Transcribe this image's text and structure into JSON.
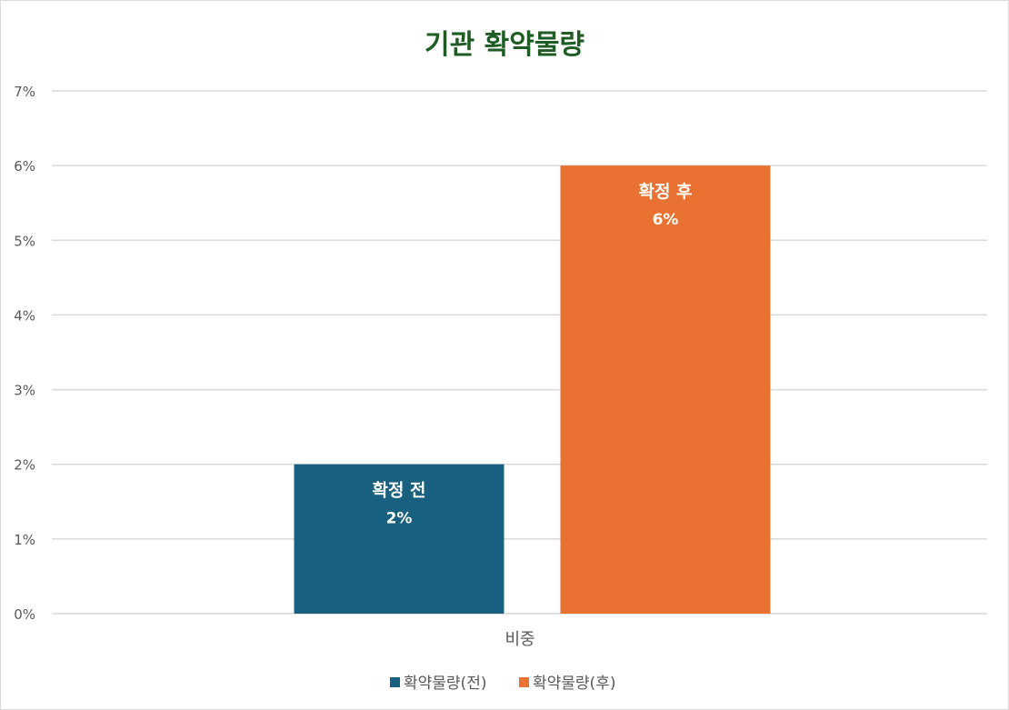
{
  "chart_data": {
    "type": "bar",
    "title": "기관 확약물량",
    "categories": [
      "비중"
    ],
    "series": [
      {
        "name": "확약물량(전)",
        "values": [
          2
        ],
        "data_label": "확정 전",
        "value_label": "2%",
        "color": "#17607F"
      },
      {
        "name": "확약물량(후)",
        "values": [
          6
        ],
        "data_label": "확정 후",
        "value_label": "6%",
        "color": "#E97132"
      }
    ],
    "ylim": [
      0,
      7
    ],
    "y_ticks": [
      "0%",
      "1%",
      "2%",
      "3%",
      "4%",
      "5%",
      "6%",
      "7%"
    ],
    "xlabel": "",
    "ylabel": "",
    "grid": true,
    "legend_position": "bottom",
    "colors": {
      "title": "#1E5C24",
      "grid": "#d9d9d9",
      "axis_text": "#595959",
      "label_text": "#ffffff"
    }
  }
}
